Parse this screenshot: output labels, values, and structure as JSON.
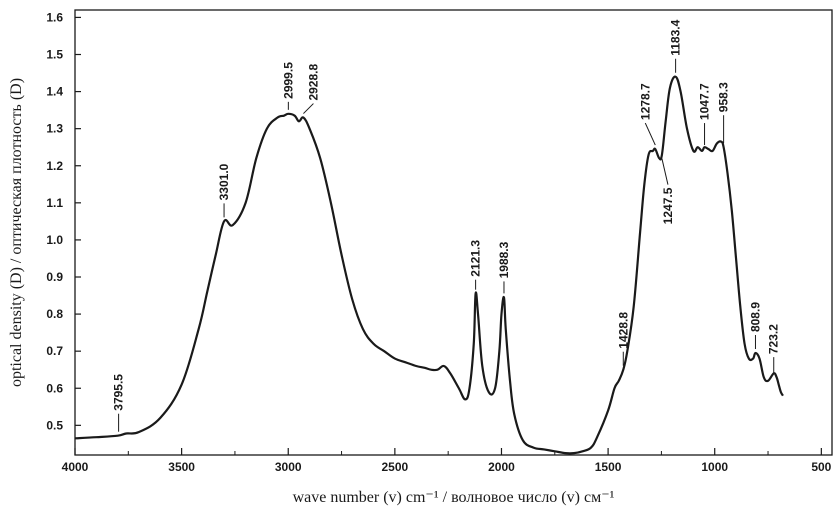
{
  "chart_data": {
    "type": "line",
    "title": "",
    "xlabel": "wave number (v) cm⁻¹ / волновое число (v) см⁻¹",
    "ylabel": "optical density (D) / оптическая плотность (D)",
    "xlim": [
      4000,
      450
    ],
    "ylim": [
      0.42,
      1.62
    ],
    "x_reversed": true,
    "grid": false,
    "legend": "none",
    "line_color": "#1a1a1a",
    "x_ticks": [
      4000,
      3500,
      3000,
      2500,
      2000,
      1500,
      1000,
      500
    ],
    "y_ticks": [
      0.5,
      0.6,
      0.7,
      0.8,
      0.9,
      1.0,
      1.1,
      1.2,
      1.3,
      1.4,
      1.5,
      1.6
    ],
    "y_tick_labels": [
      "0.5",
      "0.6",
      "0.7",
      "0.8",
      "0.9",
      "1.0",
      "1.1",
      "1.2",
      "1.3",
      "1.4",
      "1.5",
      "1.6"
    ],
    "series": [
      {
        "x": [
          4000,
          3900,
          3800,
          3760,
          3700,
          3600,
          3500,
          3420,
          3380,
          3340,
          3301,
          3260,
          3200,
          3150,
          3100,
          3050,
          3020,
          2999.5,
          2970,
          2950,
          2928.8,
          2900,
          2850,
          2800,
          2750,
          2700,
          2650,
          2600,
          2550,
          2500,
          2450,
          2400,
          2360,
          2330,
          2300,
          2270,
          2240,
          2200,
          2170,
          2150,
          2130,
          2121.3,
          2110,
          2090,
          2060,
          2030,
          2010,
          2000,
          1988.3,
          1980,
          1960,
          1940,
          1900,
          1850,
          1800,
          1750,
          1700,
          1660,
          1620,
          1580,
          1550,
          1500,
          1470,
          1450,
          1428.8,
          1410,
          1380,
          1350,
          1330,
          1310,
          1290,
          1278.7,
          1260,
          1247.5,
          1230,
          1210,
          1183.4,
          1160,
          1130,
          1100,
          1080,
          1060,
          1047.7,
          1030,
          1010,
          990,
          970,
          958.3,
          940,
          920,
          900,
          880,
          860,
          840,
          820,
          808.9,
          790,
          770,
          750,
          723.2,
          710,
          700,
          690,
          680
        ],
        "y": [
          0.465,
          0.468,
          0.472,
          0.478,
          0.482,
          0.52,
          0.61,
          0.76,
          0.86,
          0.96,
          1.05,
          1.04,
          1.1,
          1.22,
          1.3,
          1.33,
          1.335,
          1.34,
          1.335,
          1.32,
          1.33,
          1.3,
          1.22,
          1.1,
          0.96,
          0.84,
          0.76,
          0.72,
          0.7,
          0.68,
          0.67,
          0.66,
          0.655,
          0.65,
          0.65,
          0.66,
          0.64,
          0.6,
          0.57,
          0.6,
          0.72,
          0.855,
          0.8,
          0.66,
          0.59,
          0.6,
          0.7,
          0.8,
          0.845,
          0.76,
          0.62,
          0.53,
          0.46,
          0.44,
          0.435,
          0.43,
          0.425,
          0.425,
          0.43,
          0.44,
          0.47,
          0.54,
          0.6,
          0.62,
          0.65,
          0.7,
          0.82,
          1.02,
          1.15,
          1.23,
          1.24,
          1.245,
          1.22,
          1.23,
          1.32,
          1.41,
          1.44,
          1.4,
          1.3,
          1.24,
          1.25,
          1.24,
          1.25,
          1.245,
          1.24,
          1.26,
          1.265,
          1.25,
          1.18,
          1.08,
          0.95,
          0.82,
          0.72,
          0.68,
          0.68,
          0.695,
          0.68,
          0.63,
          0.62,
          0.64,
          0.63,
          0.61,
          0.59,
          0.58
        ]
      }
    ],
    "annotations": [
      {
        "label": "3795.5",
        "x": 3795.5,
        "y": 0.472
      },
      {
        "label": "3301.0",
        "x": 3301.0,
        "y": 1.05
      },
      {
        "label": "2999.5",
        "x": 2999.5,
        "y": 1.34
      },
      {
        "label": "2928.8",
        "x": 2928.8,
        "y": 1.33
      },
      {
        "label": "2121.3",
        "x": 2121.3,
        "y": 0.855
      },
      {
        "label": "1988.3",
        "x": 1988.3,
        "y": 0.845
      },
      {
        "label": "1428.8",
        "x": 1428.8,
        "y": 0.65
      },
      {
        "label": "1278.7",
        "x": 1278.7,
        "y": 1.245
      },
      {
        "label": "1247.5",
        "x": 1247.5,
        "y": 1.23
      },
      {
        "label": "1183.4",
        "x": 1183.4,
        "y": 1.44
      },
      {
        "label": "1047.7",
        "x": 1047.7,
        "y": 1.245
      },
      {
        "label": "958.3",
        "x": 958.3,
        "y": 1.25
      },
      {
        "label": "808.9",
        "x": 808.9,
        "y": 0.695
      },
      {
        "label": "723.2",
        "x": 723.2,
        "y": 0.63
      }
    ]
  }
}
